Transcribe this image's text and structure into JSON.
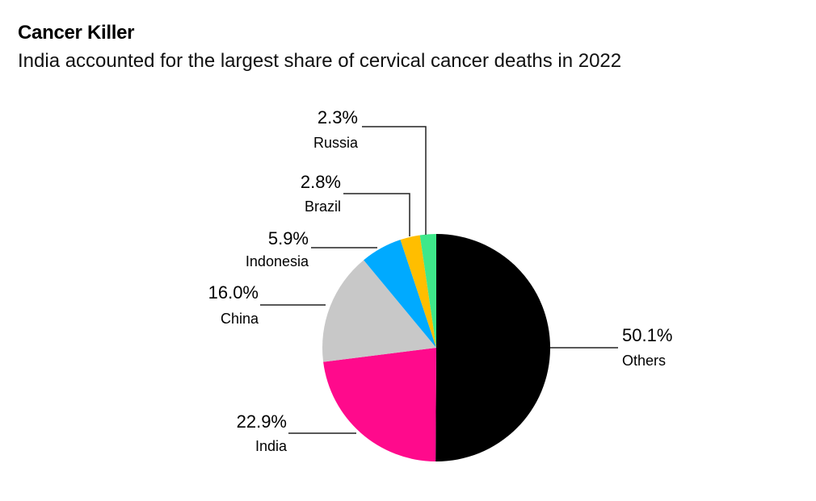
{
  "title": "Cancer Killer",
  "subtitle": "India accounted for the largest share of cervical cancer deaths in 2022",
  "chart_data": {
    "type": "pie",
    "title": "Cancer Killer",
    "subtitle": "India accounted for the largest share of cervical cancer deaths in 2022",
    "start": "12 o'clock, clockwise",
    "slices": [
      {
        "label": "Others",
        "value": 50.1,
        "display": "50.1%",
        "color": "#000000"
      },
      {
        "label": "India",
        "value": 22.9,
        "display": "22.9%",
        "color": "#ff0a8c"
      },
      {
        "label": "China",
        "value": 16.0,
        "display": "16.0%",
        "color": "#c8c8c8"
      },
      {
        "label": "Indonesia",
        "value": 5.9,
        "display": "5.9%",
        "color": "#00aaff"
      },
      {
        "label": "Brazil",
        "value": 2.8,
        "display": "2.8%",
        "color": "#ffbe00"
      },
      {
        "label": "Russia",
        "value": 2.3,
        "display": "2.3%",
        "color": "#3ee88a"
      }
    ]
  }
}
